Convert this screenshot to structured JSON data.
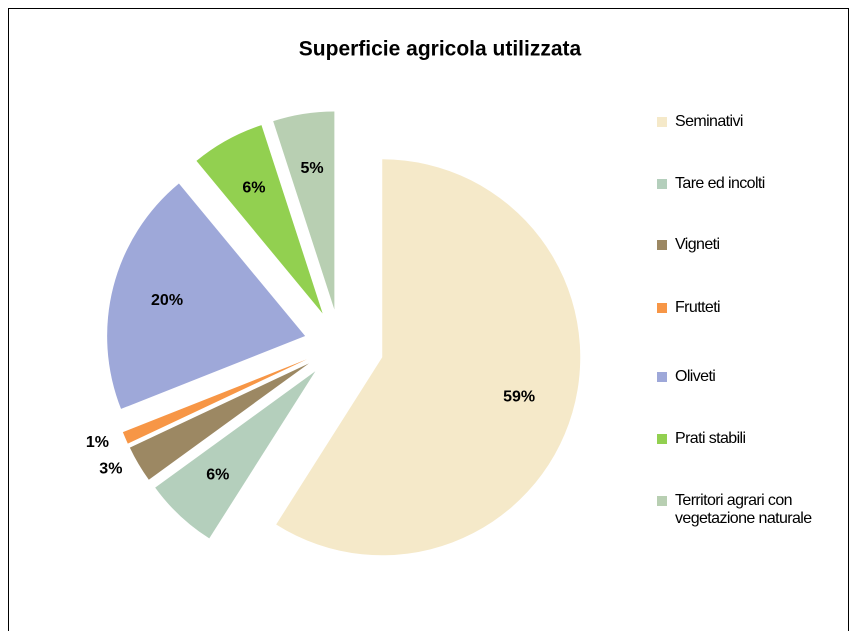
{
  "chart_data": {
    "type": "pie",
    "title": "Superficie agricola utilizzata",
    "categories": [
      "Seminativi",
      "Tare ed incolti",
      "Vigneti",
      "Frutteti",
      "Oliveti",
      "Prati stabili",
      "Territori agrari con vegetazione naturale"
    ],
    "values": [
      59,
      6,
      3,
      1,
      20,
      6,
      5
    ],
    "value_labels": [
      "59%",
      "6%",
      "3%",
      "1%",
      "20%",
      "6%",
      "5%"
    ],
    "colors": [
      "#f5e9c9",
      "#b4cfbc",
      "#9c8863",
      "#f79646",
      "#9ea8d9",
      "#92d050",
      "#b8cfb2"
    ],
    "legend": "right"
  }
}
